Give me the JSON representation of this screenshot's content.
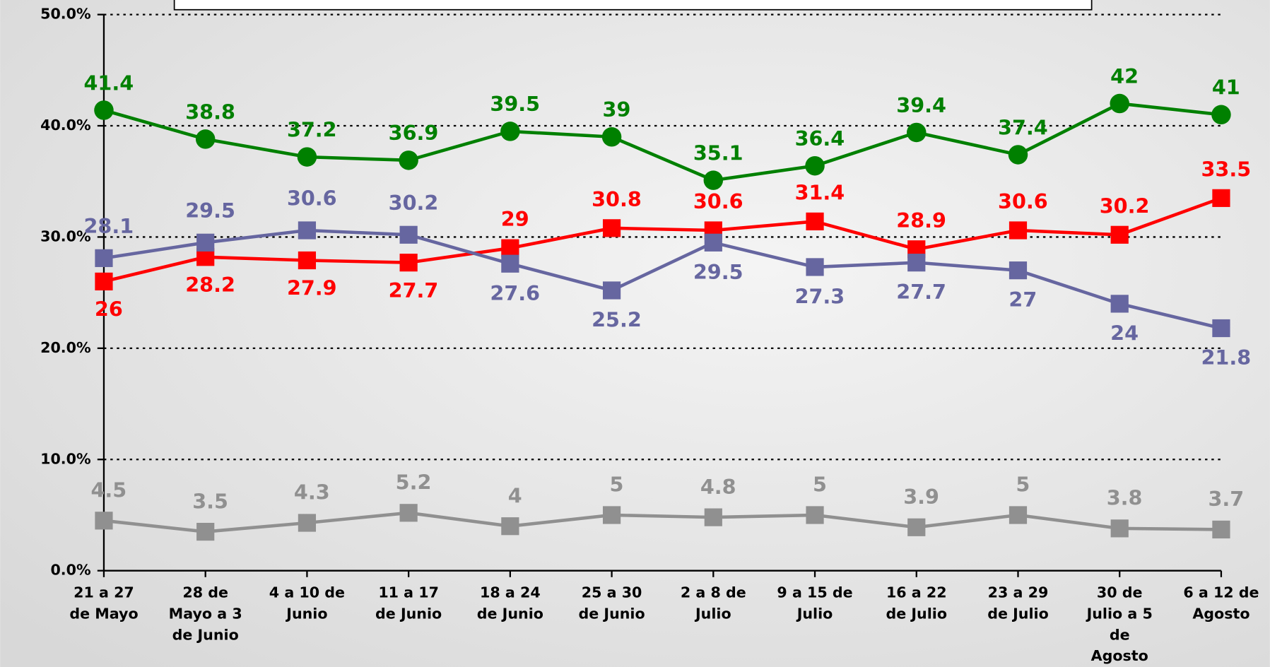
{
  "chart_data": {
    "type": "line",
    "categories": [
      "21 a 27\nde Mayo",
      "28 de\nMayo a 3\nde Junio",
      "4 a 10 de\nJunio",
      "11 a 17\nde Junio",
      "18 a 24\nde Junio",
      "25 a 30\nde Junio",
      "2 a 8 de\nJulio",
      "9 a 15 de\nJulio",
      "16 a 22\nde Julio",
      "23 a 29\nde Julio",
      "30 de\nJulio a 5\nde\nAgosto",
      "6 a 12 de\nAgosto"
    ],
    "series": [
      {
        "color": "#008000",
        "marker": "circle",
        "values": [
          41.4,
          38.8,
          37.2,
          36.9,
          39.5,
          39.0,
          35.1,
          36.4,
          39.4,
          37.4,
          42.0,
          41.0
        ]
      },
      {
        "color": "#ff0000",
        "marker": "square",
        "values": [
          26.0,
          28.2,
          27.9,
          27.7,
          29.0,
          30.8,
          30.6,
          31.4,
          28.9,
          30.6,
          30.2,
          33.5
        ]
      },
      {
        "color": "#6666a0",
        "marker": "square",
        "values": [
          28.1,
          29.5,
          30.6,
          30.2,
          27.6,
          25.2,
          29.5,
          27.3,
          27.7,
          27.0,
          24.0,
          21.8
        ]
      },
      {
        "color": "#909090",
        "marker": "square",
        "values": [
          4.5,
          3.5,
          4.3,
          5.2,
          4.0,
          5.0,
          4.8,
          5.0,
          3.9,
          5.0,
          3.8,
          3.7
        ]
      }
    ],
    "ylim": [
      0,
      50
    ],
    "yticks": [
      {
        "value": 0,
        "label": "0.0%"
      },
      {
        "value": 10,
        "label": "10.0%"
      },
      {
        "value": 20,
        "label": "20.0%"
      },
      {
        "value": 30,
        "label": "30.0%"
      },
      {
        "value": 40,
        "label": "40.0%"
      },
      {
        "value": 50,
        "label": "50.0%"
      }
    ],
    "grid": true
  }
}
